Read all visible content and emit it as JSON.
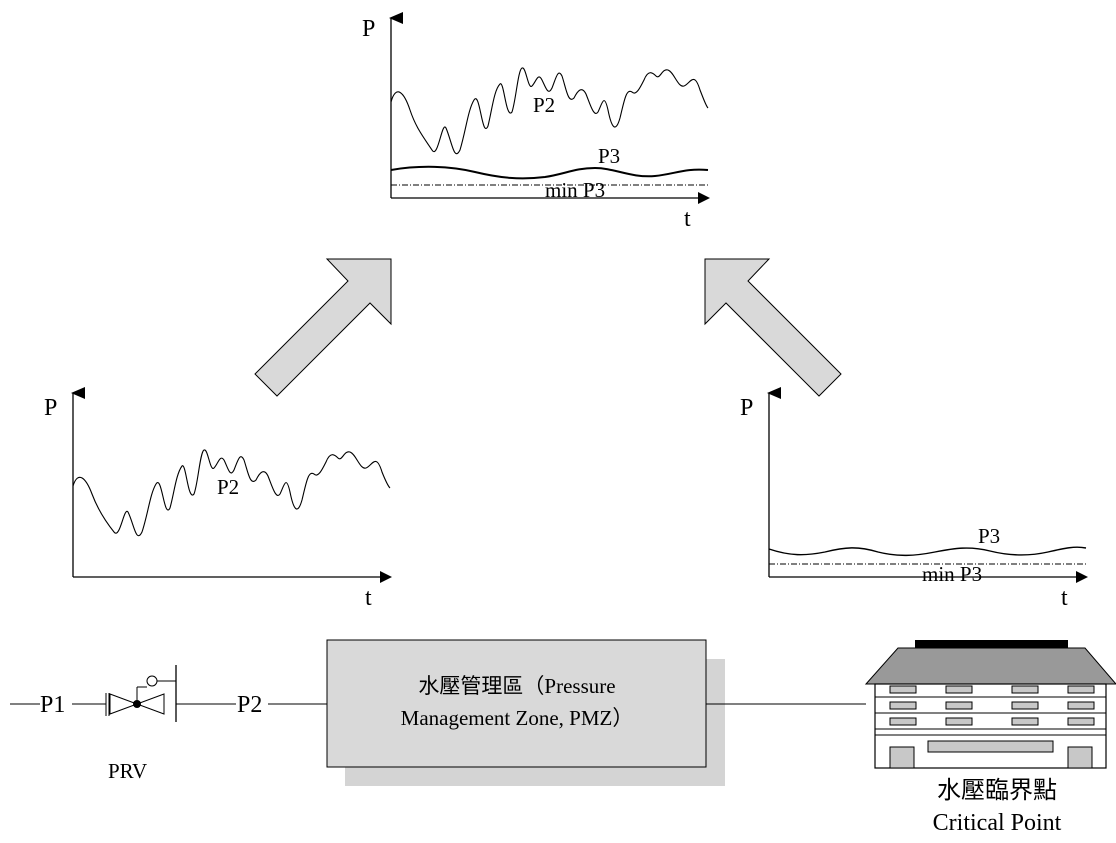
{
  "top_chart": {
    "y_axis": "P",
    "x_axis": "t",
    "upper_curve": "P2",
    "lower_curve": "P3",
    "min_line": "min P3"
  },
  "left_chart": {
    "y_axis": "P",
    "x_axis": "t",
    "curve": "P2"
  },
  "right_chart": {
    "y_axis": "P",
    "x_axis": "t",
    "curve": "P3",
    "min_line": "min P3"
  },
  "pipeline": {
    "p1_label": "P1",
    "p2_label": "P2",
    "valve_label": "PRV"
  },
  "zone": {
    "line1": "水壓管理區（Pressure",
    "line2": "Management Zone, PMZ）"
  },
  "critical_point": {
    "label_zh": "水壓臨界點",
    "label_en": "Critical Point"
  }
}
